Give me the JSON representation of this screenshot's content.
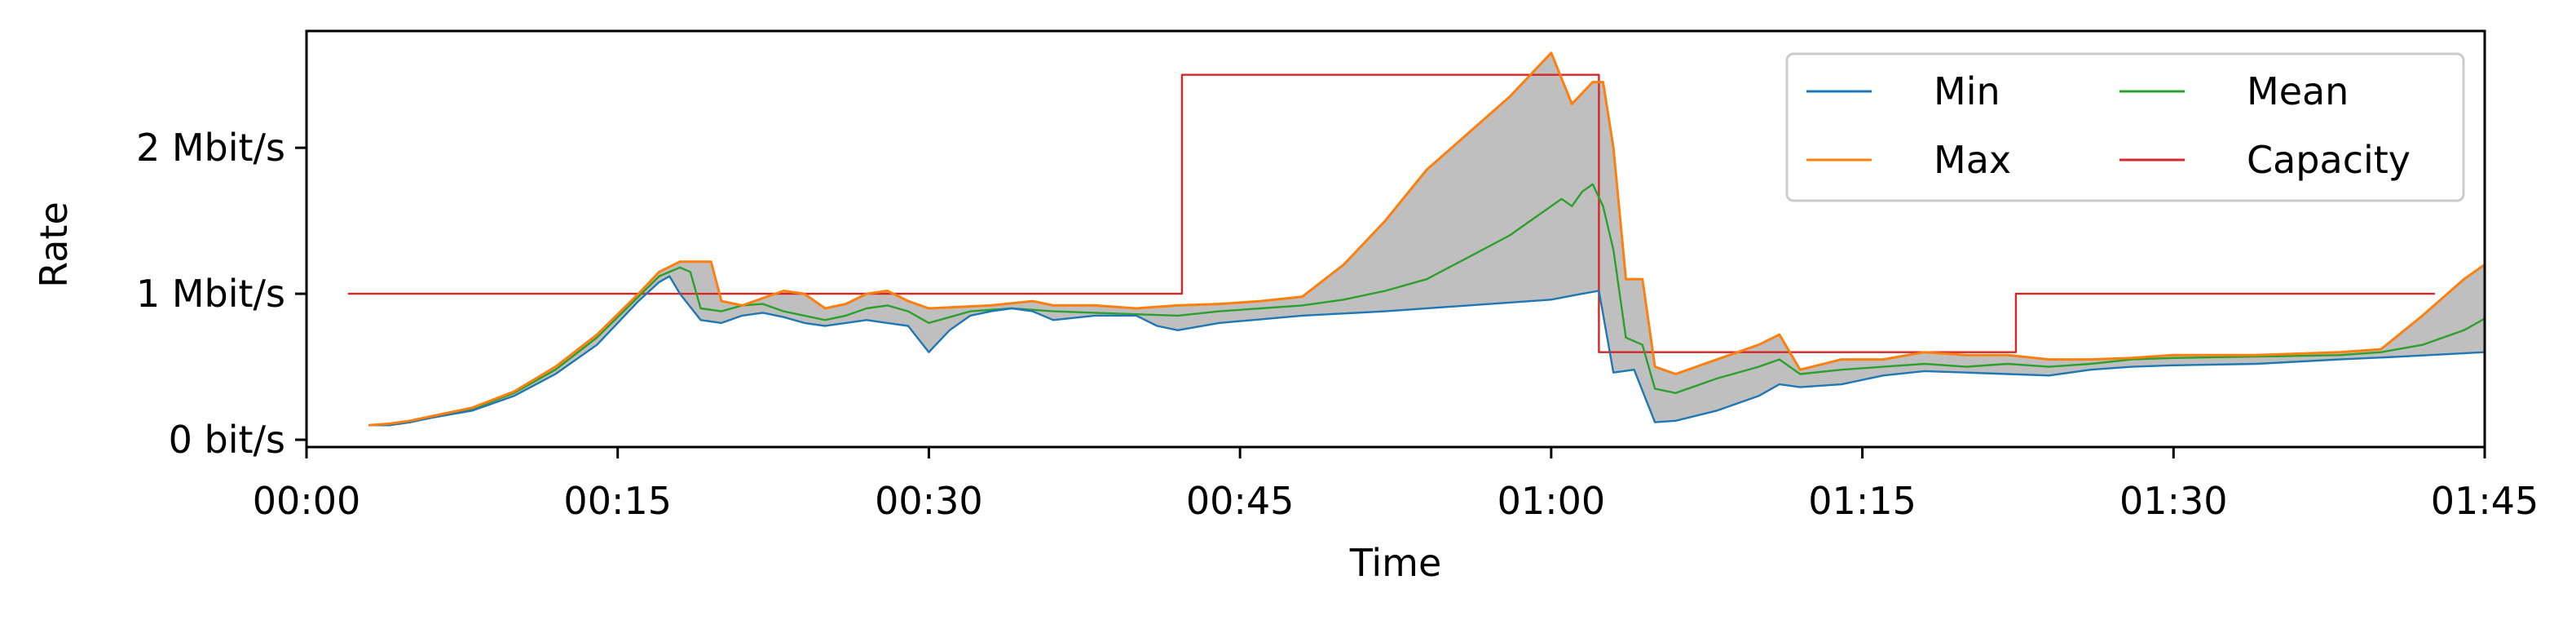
{
  "chart_data": {
    "type": "line",
    "title": "",
    "xlabel": "Time",
    "ylabel": "Rate",
    "x_unit": "minutes",
    "xlim": [
      0,
      105
    ],
    "ylim": [
      -0.05,
      2.8
    ],
    "x_ticks": [
      0,
      15,
      30,
      45,
      60,
      75,
      90,
      105
    ],
    "x_tick_labels": [
      "00:00",
      "00:15",
      "00:30",
      "00:45",
      "01:00",
      "01:15",
      "01:30",
      "01:45"
    ],
    "y_ticks": [
      0,
      1,
      2
    ],
    "y_tick_labels": [
      "0 bit/s",
      "1 Mbit/s",
      "2 Mbit/s"
    ],
    "grid": false,
    "legend": {
      "placement": "top-right",
      "columns": 2
    },
    "fill_between": {
      "lower": "Min",
      "upper": "Max",
      "color": "#bfbfbf"
    },
    "series": [
      {
        "name": "Min",
        "color": "#1f77b4",
        "x": [
          3,
          4,
          5,
          6,
          8,
          10,
          12,
          14,
          16,
          17,
          17.5,
          18,
          19,
          20,
          21,
          22,
          23,
          24,
          25,
          26,
          27,
          28,
          29,
          30,
          31,
          32,
          33,
          34,
          35,
          36,
          38,
          40,
          41,
          42,
          44,
          48,
          52,
          56,
          60,
          61.5,
          62.3,
          63,
          64,
          65,
          66,
          68,
          70,
          71,
          72,
          74,
          76,
          78,
          80,
          82,
          84,
          86,
          88,
          90,
          94,
          98,
          101,
          105
        ],
        "y": [
          0.1,
          0.1,
          0.12,
          0.15,
          0.2,
          0.3,
          0.45,
          0.65,
          0.95,
          1.08,
          1.12,
          1.0,
          0.82,
          0.8,
          0.85,
          0.87,
          0.84,
          0.8,
          0.78,
          0.8,
          0.82,
          0.8,
          0.78,
          0.6,
          0.75,
          0.85,
          0.88,
          0.9,
          0.88,
          0.82,
          0.85,
          0.85,
          0.78,
          0.75,
          0.8,
          0.85,
          0.88,
          0.92,
          0.96,
          1.0,
          1.02,
          0.46,
          0.48,
          0.12,
          0.13,
          0.2,
          0.3,
          0.38,
          0.36,
          0.38,
          0.44,
          0.47,
          0.46,
          0.45,
          0.44,
          0.48,
          0.5,
          0.51,
          0.52,
          0.55,
          0.57,
          0.6
        ]
      },
      {
        "name": "Max",
        "color": "#ff7f0e",
        "x": [
          3,
          4,
          5,
          6,
          8,
          10,
          12,
          14,
          16,
          17,
          18,
          19.5,
          20,
          21,
          22,
          23,
          24,
          25,
          26,
          27,
          28,
          29,
          30,
          33,
          35,
          36,
          38,
          40,
          42,
          44,
          46,
          48,
          50,
          52,
          54,
          56,
          58,
          59,
          60,
          61,
          62,
          62.5,
          63,
          63.6,
          64.4,
          65,
          66,
          68,
          70,
          71,
          72,
          74,
          76,
          78,
          80,
          82,
          84,
          86,
          88,
          90,
          94,
          98,
          100,
          102,
          104,
          105
        ],
        "y": [
          0.1,
          0.11,
          0.13,
          0.16,
          0.22,
          0.33,
          0.5,
          0.72,
          1.0,
          1.15,
          1.22,
          1.22,
          0.95,
          0.92,
          0.97,
          1.02,
          1.0,
          0.9,
          0.93,
          1.0,
          1.02,
          0.95,
          0.9,
          0.92,
          0.95,
          0.92,
          0.92,
          0.9,
          0.92,
          0.93,
          0.95,
          0.98,
          1.2,
          1.5,
          1.85,
          2.1,
          2.35,
          2.5,
          2.65,
          2.3,
          2.45,
          2.45,
          2.0,
          1.1,
          1.1,
          0.5,
          0.45,
          0.55,
          0.65,
          0.72,
          0.48,
          0.55,
          0.55,
          0.6,
          0.58,
          0.58,
          0.55,
          0.55,
          0.56,
          0.58,
          0.58,
          0.6,
          0.62,
          0.85,
          1.1,
          1.2
        ]
      },
      {
        "name": "Mean",
        "color": "#2ca02c",
        "x": [
          3,
          4,
          5,
          6,
          8,
          10,
          12,
          14,
          16,
          17,
          18,
          18.5,
          19,
          20,
          21,
          22,
          23,
          24,
          25,
          26,
          27,
          28,
          29,
          30,
          32,
          34,
          36,
          38,
          40,
          42,
          44,
          46,
          48,
          50,
          52,
          54,
          56,
          58,
          59,
          60,
          60.5,
          61,
          61.5,
          62,
          62.5,
          63,
          63.6,
          64.4,
          65,
          66,
          68,
          70,
          71,
          72,
          74,
          76,
          78,
          80,
          82,
          84,
          86,
          88,
          90,
          94,
          98,
          100,
          102,
          104,
          105
        ],
        "y": [
          0.1,
          0.1,
          0.12,
          0.15,
          0.21,
          0.32,
          0.48,
          0.7,
          0.98,
          1.12,
          1.18,
          1.15,
          0.9,
          0.88,
          0.92,
          0.93,
          0.88,
          0.85,
          0.82,
          0.85,
          0.9,
          0.92,
          0.88,
          0.8,
          0.88,
          0.9,
          0.88,
          0.87,
          0.86,
          0.85,
          0.88,
          0.9,
          0.92,
          0.96,
          1.02,
          1.1,
          1.25,
          1.4,
          1.5,
          1.6,
          1.65,
          1.6,
          1.7,
          1.75,
          1.6,
          1.3,
          0.7,
          0.65,
          0.35,
          0.32,
          0.42,
          0.5,
          0.55,
          0.45,
          0.48,
          0.5,
          0.52,
          0.5,
          0.52,
          0.5,
          0.52,
          0.55,
          0.56,
          0.57,
          0.58,
          0.6,
          0.65,
          0.75,
          0.83
        ]
      },
      {
        "name": "Capacity",
        "color": "#d62728",
        "step": true,
        "x": [
          2,
          42.2,
          42.2,
          62.3,
          62.3,
          82.4,
          82.4,
          102.6
        ],
        "y": [
          1.0,
          1.0,
          2.5,
          2.5,
          0.6,
          0.6,
          1.0,
          1.0
        ]
      }
    ]
  }
}
